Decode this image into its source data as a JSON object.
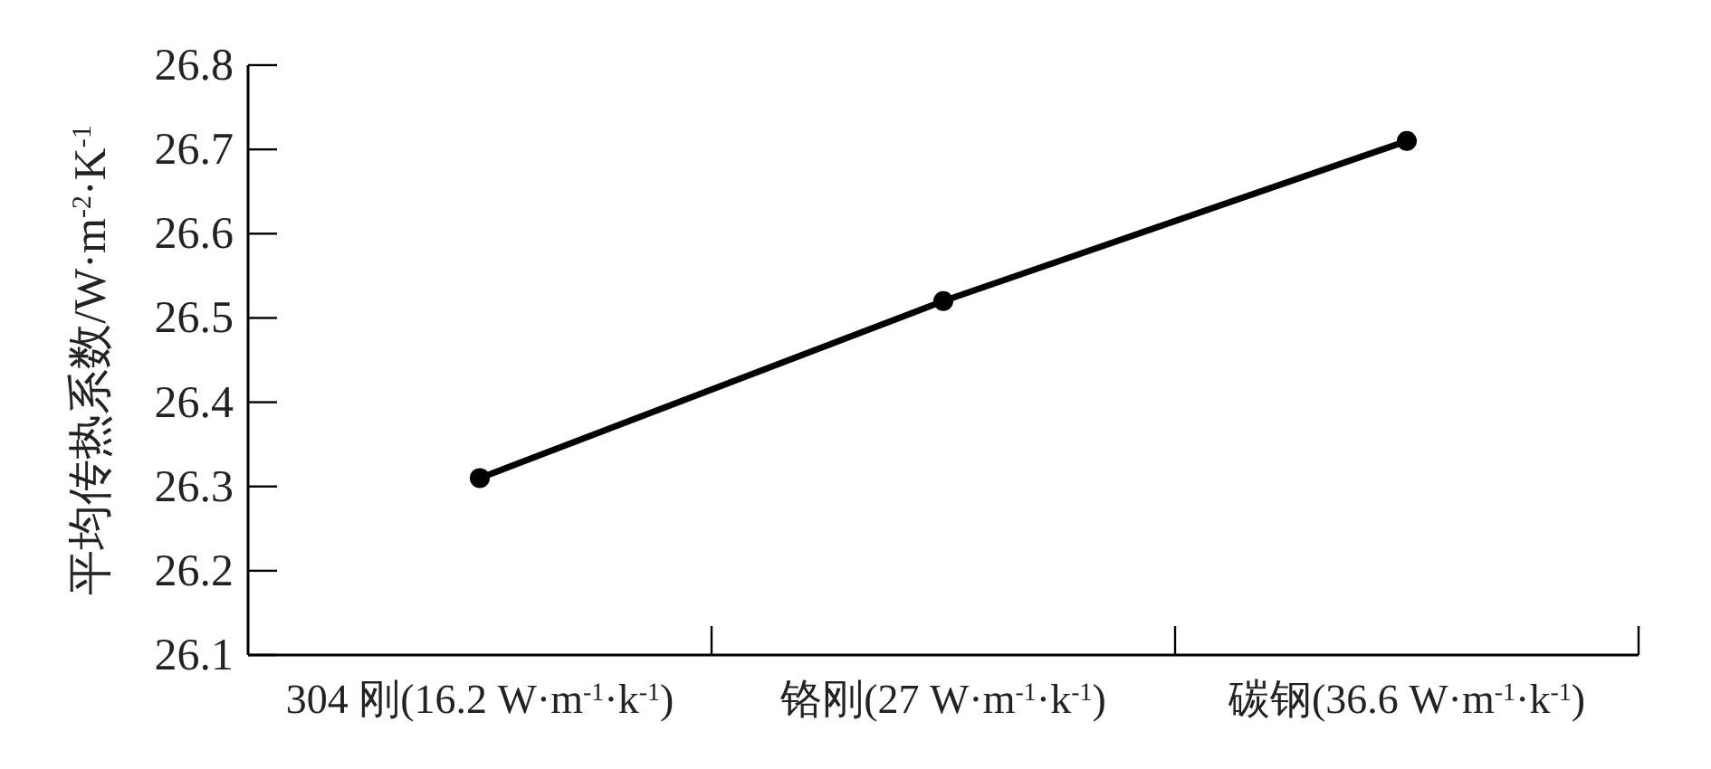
{
  "chart_data": {
    "type": "line",
    "ylabel": "平均传热系数/W·m$^{-2}$·K$^{-1}$",
    "categories": [
      "304 刚(16.2 W·m$^{-1}$·k$^{-1}$)",
      "铬刚(27 W·m$^{-1}$·k$^{-1}$)",
      "碳钢(36.6 W·m$^{-1}$·k$^{-1}$)"
    ],
    "values": [
      26.31,
      26.52,
      26.71
    ],
    "color": "#000000",
    "marker": "circle",
    "ylim": [
      26.1,
      26.8
    ],
    "yticks": [
      26.1,
      26.2,
      26.3,
      26.4,
      26.5,
      26.6,
      26.7,
      26.8
    ]
  }
}
